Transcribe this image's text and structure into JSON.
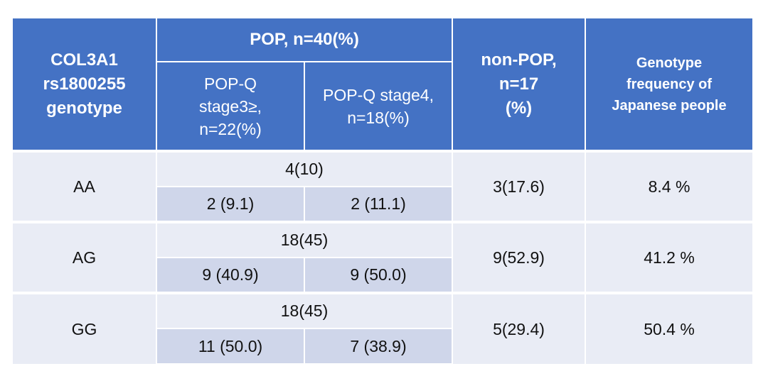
{
  "header": {
    "genotype_label": "COL3A1\nrs1800255\ngenotype",
    "pop_group_label": "POP, n=40(%)",
    "pop_stage3_label": "POP-Q\nstage3≥,\nn=22(%)",
    "pop_stage4_label": "POP-Q stage4,\nn=18(%)",
    "non_pop_label": "non-POP,\nn=17\n(%)",
    "japanese_freq_label": "Genotype\nfrequency of\nJapanese people"
  },
  "rows": [
    {
      "genotype": "AA",
      "pop_total": "4(10)",
      "stage3": "2 (9.1)",
      "stage4": "2 (11.1)",
      "non_pop": "3(17.6)",
      "japanese_freq": "8.4 %"
    },
    {
      "genotype": "AG",
      "pop_total": "18(45)",
      "stage3": "9 (40.9)",
      "stage4": "9 (50.0)",
      "non_pop": "9(52.9)",
      "japanese_freq": "41.2 %"
    },
    {
      "genotype": "GG",
      "pop_total": "18(45)",
      "stage3": "11 (50.0)",
      "stage4": "7 (38.9)",
      "non_pop": "5(29.4)",
      "japanese_freq": "50.4 %"
    }
  ]
}
